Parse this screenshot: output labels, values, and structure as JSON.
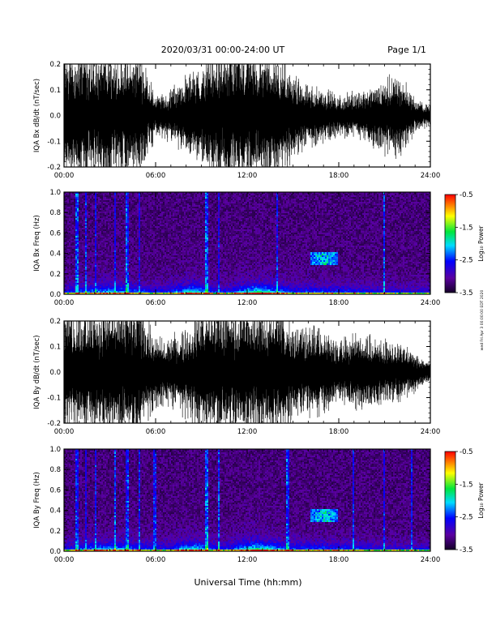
{
  "header": {
    "title": "2020/03/31  00:00-24:00 UT",
    "page": "Page 1/1"
  },
  "side_note": "wed Fri Apr 3 00:00:00 EDT 2020",
  "xlabel": "Universal Time (hh:mm)",
  "x_ticks": [
    "00:00",
    "06:00",
    "12:00",
    "18:00",
    "24:00"
  ],
  "colorbar": {
    "label": "Log₁₀ Power",
    "ticks": [
      "-0.5",
      "-1.5",
      "-2.5",
      "-3.5"
    ],
    "range": [
      -3.5,
      -0.5
    ]
  },
  "chart_data": [
    {
      "type": "line",
      "ylabel": "IQA Bx dB/dt (nT/sec)",
      "ylim": [
        -0.2,
        0.2
      ],
      "y_ticks": [
        "0.2",
        "0.1",
        "0.0",
        "-0.1",
        "-0.2"
      ],
      "xlim": [
        0,
        24
      ],
      "envelope": {
        "x": [
          0,
          1,
          2,
          3,
          4,
          5,
          6,
          7,
          8,
          9,
          10,
          11,
          12,
          13,
          14,
          15,
          16,
          17,
          18,
          19,
          20,
          21,
          22,
          23,
          24
        ],
        "amplitude": [
          0.2,
          0.2,
          0.19,
          0.2,
          0.18,
          0.2,
          0.06,
          0.08,
          0.12,
          0.15,
          0.2,
          0.2,
          0.2,
          0.2,
          0.2,
          0.13,
          0.09,
          0.09,
          0.06,
          0.07,
          0.09,
          0.11,
          0.13,
          0.05,
          0.03
        ]
      }
    },
    {
      "type": "heatmap",
      "ylabel": "IQA Bx Freq (Hz)",
      "ylim": [
        0,
        1.0
      ],
      "y_ticks": [
        "1.0",
        "0.8",
        "0.6",
        "0.4",
        "0.2",
        "0.0"
      ],
      "xlim": [
        0,
        24
      ],
      "features": {
        "band_hour": 17.0,
        "band_freq": [
          0.3,
          0.42
        ],
        "vertical_lines_hours": [
          0.8,
          1.4,
          2.0,
          3.3,
          4.1,
          4.9,
          9.3,
          10.1,
          13.9,
          20.9
        ]
      }
    },
    {
      "type": "line",
      "ylabel": "IQA By dB/dt (nT/sec)",
      "ylim": [
        -0.2,
        0.2
      ],
      "y_ticks": [
        "0.2",
        "0.1",
        "0.0",
        "-0.1",
        "-0.2"
      ],
      "xlim": [
        0,
        24
      ],
      "envelope": {
        "x": [
          0,
          1,
          2,
          3,
          4,
          5,
          6,
          7,
          8,
          9,
          10,
          11,
          12,
          13,
          14,
          15,
          16,
          17,
          18,
          19,
          20,
          21,
          22,
          23,
          24
        ],
        "amplitude": [
          0.2,
          0.2,
          0.2,
          0.2,
          0.2,
          0.2,
          0.11,
          0.1,
          0.14,
          0.2,
          0.2,
          0.2,
          0.2,
          0.2,
          0.2,
          0.16,
          0.14,
          0.13,
          0.1,
          0.12,
          0.12,
          0.1,
          0.09,
          0.06,
          0.03
        ]
      }
    },
    {
      "type": "heatmap",
      "ylabel": "IQA By Freq (Hz)",
      "ylim": [
        0,
        1.0
      ],
      "y_ticks": [
        "1.0",
        "0.8",
        "0.6",
        "0.4",
        "0.2",
        "0.0"
      ],
      "xlim": [
        0,
        24
      ],
      "features": {
        "band_hour": 17.0,
        "band_freq": [
          0.3,
          0.42
        ],
        "vertical_lines_hours": [
          0.8,
          1.4,
          2.0,
          3.3,
          4.1,
          4.9,
          5.9,
          9.3,
          10.1,
          14.6,
          18.9,
          20.9,
          22.7
        ]
      }
    }
  ]
}
